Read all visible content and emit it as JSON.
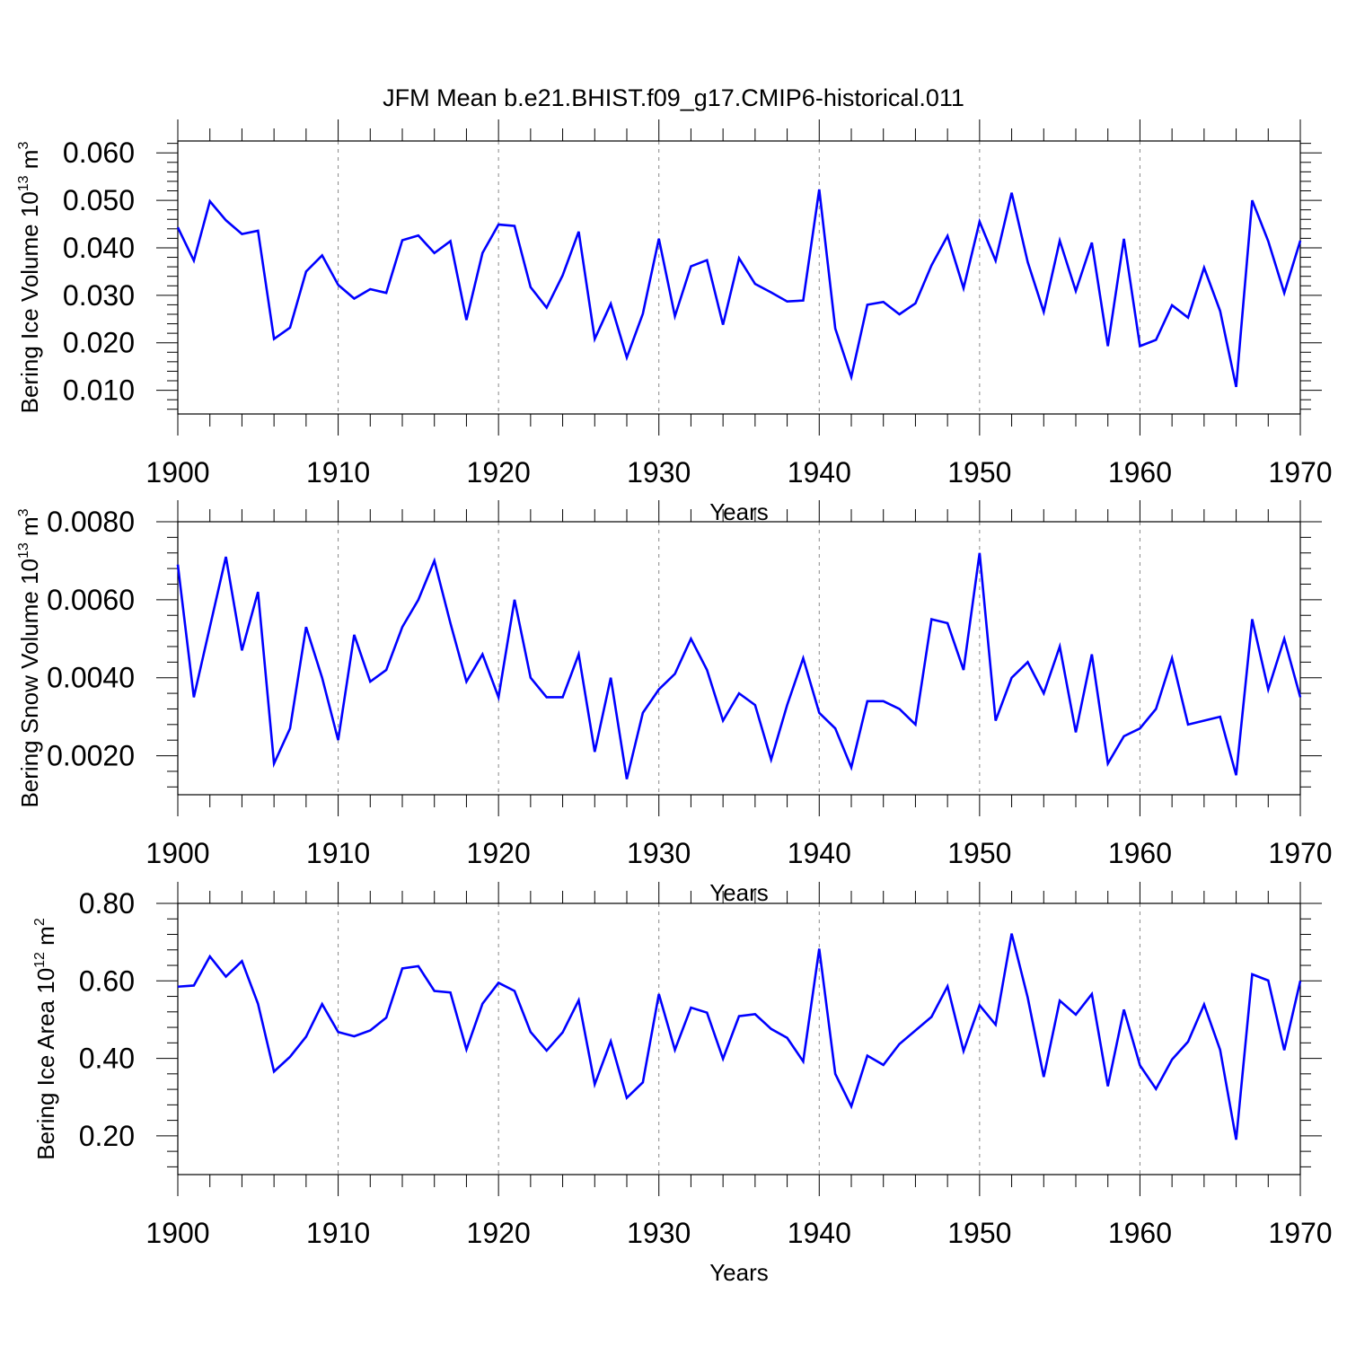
{
  "chart_data": {
    "type": "line",
    "title": "JFM Mean b.e21.BHIST.f09_g17.CMIP6-historical.011",
    "line_color": "#0000ff",
    "grid_line_color": "#888888",
    "x": [
      1900,
      1901,
      1902,
      1903,
      1904,
      1905,
      1906,
      1907,
      1908,
      1909,
      1910,
      1911,
      1912,
      1913,
      1914,
      1915,
      1916,
      1917,
      1918,
      1919,
      1920,
      1921,
      1922,
      1923,
      1924,
      1925,
      1926,
      1927,
      1928,
      1929,
      1930,
      1931,
      1932,
      1933,
      1934,
      1935,
      1936,
      1937,
      1938,
      1939,
      1940,
      1941,
      1942,
      1943,
      1944,
      1945,
      1946,
      1947,
      1948,
      1949,
      1950,
      1951,
      1952,
      1953,
      1954,
      1955,
      1956,
      1957,
      1958,
      1959,
      1960,
      1961,
      1962,
      1963,
      1964,
      1965,
      1966,
      1967,
      1968,
      1969,
      1970
    ],
    "xlim": [
      1900,
      1970
    ],
    "xticks": [
      "1900",
      "1910",
      "1920",
      "1930",
      "1940",
      "1950",
      "1960",
      "1970"
    ],
    "xlabel": "Years",
    "panels": [
      {
        "ylabel": {
          "base": "Bering Ice Volume 10",
          "exp": "13",
          "unit": " m",
          "unit_exp": "3"
        },
        "ylim": [
          0.005,
          0.0625
        ],
        "yticks": [
          "0.010",
          "0.020",
          "0.030",
          "0.040",
          "0.050",
          "0.060"
        ],
        "values": [
          0.0443,
          0.0373,
          0.0498,
          0.0458,
          0.0429,
          0.0436,
          0.0208,
          0.0232,
          0.035,
          0.0384,
          0.0322,
          0.0293,
          0.0313,
          0.0305,
          0.0416,
          0.0426,
          0.0389,
          0.0414,
          0.0248,
          0.0389,
          0.0449,
          0.0446,
          0.0317,
          0.0274,
          0.0342,
          0.0434,
          0.0208,
          0.0282,
          0.0169,
          0.0261,
          0.0419,
          0.0256,
          0.0361,
          0.0374,
          0.0238,
          0.0378,
          0.0324,
          0.0306,
          0.0287,
          0.0289,
          0.0523,
          0.023,
          0.0128,
          0.028,
          0.0286,
          0.026,
          0.0283,
          0.0363,
          0.0425,
          0.0315,
          0.0455,
          0.0373,
          0.0516,
          0.037,
          0.0265,
          0.0415,
          0.0309,
          0.0411,
          0.0193,
          0.0419,
          0.0193,
          0.0206,
          0.0279,
          0.0253,
          0.0358,
          0.0267,
          0.0107,
          0.05,
          0.0414,
          0.0305,
          0.0415
        ]
      },
      {
        "ylabel": {
          "base": "Bering Snow Volume 10",
          "exp": "13",
          "unit": " m",
          "unit_exp": "3"
        },
        "ylim": [
          0.001,
          0.008
        ],
        "yticks": [
          "0.0020",
          "0.0040",
          "0.0060",
          "0.0080"
        ],
        "values": [
          0.0069,
          0.0035,
          0.0053,
          0.0071,
          0.0047,
          0.0062,
          0.0018,
          0.0027,
          0.0053,
          0.004,
          0.0024,
          0.0051,
          0.0039,
          0.0042,
          0.0053,
          0.006,
          0.007,
          0.0054,
          0.0039,
          0.0046,
          0.0035,
          0.006,
          0.004,
          0.0035,
          0.0035,
          0.0046,
          0.0021,
          0.004,
          0.0014,
          0.0031,
          0.0037,
          0.0041,
          0.005,
          0.0042,
          0.0029,
          0.0036,
          0.0033,
          0.0019,
          0.0033,
          0.0045,
          0.0031,
          0.0027,
          0.0017,
          0.0034,
          0.0034,
          0.0032,
          0.0028,
          0.0055,
          0.0054,
          0.0042,
          0.0072,
          0.0029,
          0.004,
          0.0044,
          0.0036,
          0.0048,
          0.0026,
          0.0046,
          0.0018,
          0.0025,
          0.0027,
          0.0032,
          0.0045,
          0.0028,
          0.0029,
          0.003,
          0.0015,
          0.0055,
          0.0037,
          0.005,
          0.0035
        ]
      },
      {
        "ylabel": {
          "base": "Bering Ice Area 10",
          "exp": "12",
          "unit": " m",
          "unit_exp": "2"
        },
        "ylim": [
          0.1,
          0.8
        ],
        "yticks": [
          "0.20",
          "0.40",
          "0.60",
          "0.80"
        ],
        "values": [
          0.585,
          0.588,
          0.663,
          0.611,
          0.651,
          0.541,
          0.366,
          0.404,
          0.456,
          0.54,
          0.468,
          0.457,
          0.472,
          0.505,
          0.632,
          0.638,
          0.574,
          0.57,
          0.423,
          0.541,
          0.595,
          0.574,
          0.468,
          0.42,
          0.467,
          0.55,
          0.333,
          0.444,
          0.298,
          0.338,
          0.566,
          0.422,
          0.531,
          0.518,
          0.399,
          0.509,
          0.514,
          0.476,
          0.453,
          0.392,
          0.683,
          0.36,
          0.276,
          0.407,
          0.383,
          0.437,
          0.472,
          0.507,
          0.586,
          0.419,
          0.537,
          0.487,
          0.722,
          0.557,
          0.352,
          0.549,
          0.513,
          0.566,
          0.328,
          0.526,
          0.382,
          0.321,
          0.397,
          0.443,
          0.539,
          0.422,
          0.19,
          0.617,
          0.601,
          0.421,
          0.6
        ]
      }
    ]
  }
}
